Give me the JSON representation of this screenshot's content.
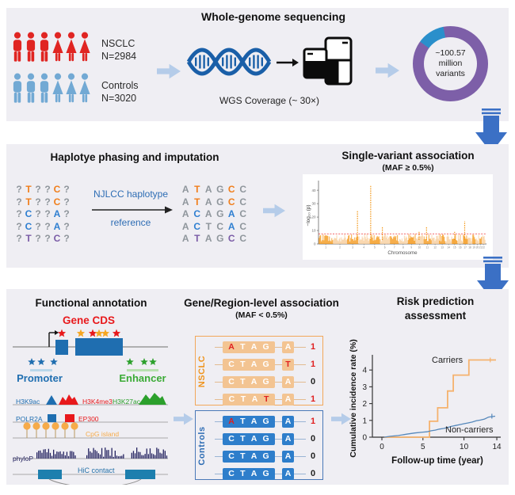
{
  "wgs": {
    "title": "Whole-genome sequencing",
    "cases_name": "NSCLC",
    "cases_n": "N=2984",
    "controls_name": "Controls",
    "controls_n": "N=3020",
    "coverage": "WGS Coverage (~ 30×)",
    "donut_line1": "~100.57 million",
    "donut_line2": "variants"
  },
  "haplotype": {
    "title": "Haplotye phasing and imputation",
    "ref_line1": "NJLCC haplotype",
    "ref_line2": "reference",
    "left_matrix": [
      [
        "?:g",
        "T:o",
        "?:g",
        "?:g",
        "C:o",
        "?:g"
      ],
      [
        "?:g",
        "T:o",
        "?:g",
        "?:g",
        "C:o",
        "?:g"
      ],
      [
        "?:g",
        "C:b",
        "?:g",
        "?:g",
        "A:b",
        "?:g"
      ],
      [
        "?:g",
        "C:b",
        "?:g",
        "?:g",
        "A:b",
        "?:g"
      ],
      [
        "?:g",
        "T:p",
        "?:g",
        "?:g",
        "C:p",
        "?:g"
      ]
    ],
    "right_matrix": [
      [
        "A:g",
        "T:o",
        "A:g",
        "G:g",
        "C:o",
        "C:g"
      ],
      [
        "A:g",
        "T:o",
        "A:g",
        "G:g",
        "C:o",
        "C:g"
      ],
      [
        "A:g",
        "C:b",
        "A:g",
        "G:g",
        "A:b",
        "C:g"
      ],
      [
        "A:g",
        "C:b",
        "T:g",
        "C:g",
        "A:b",
        "C:g"
      ],
      [
        "A:g",
        "T:p",
        "A:g",
        "G:g",
        "C:p",
        "C:g"
      ]
    ]
  },
  "single_variant": {
    "title": "Single-variant association",
    "subtitle": "(MAF ≥ 0.5%)"
  },
  "functional": {
    "title": "Functional annotation",
    "gene_cds": "Gene CDS",
    "promoter": "Promoter",
    "enhancer": "Enhancer",
    "tracks": {
      "h3k9ac": "H3K9ac",
      "h3k4me3": "H3K4me3",
      "h3k27ac": "H3K27ac",
      "polr2a": "POLR2A",
      "ep300": "EP300",
      "cpg": "CpG island",
      "phylop": "phyloP",
      "hic": "HiC contact"
    }
  },
  "gene_region": {
    "title": "Gene/Region-level association",
    "subtitle": "(MAF < 0.5%)",
    "nsclc_label": "NSCLC",
    "controls_label": "Controls",
    "nsclc_rows": [
      {
        "seq": [
          "A:r",
          "T:w",
          "A:w",
          "G:w"
        ],
        "allele": "A:w",
        "result": "1:r"
      },
      {
        "seq": [
          "C:w",
          "T:w",
          "A:w",
          "G:w"
        ],
        "allele": "T:r",
        "result": "1:r"
      },
      {
        "seq": [
          "C:w",
          "T:w",
          "A:w",
          "G:w"
        ],
        "allele": "A:w",
        "result": "0:k"
      },
      {
        "seq": [
          "C:w",
          "T:w",
          "A:w",
          "T:r"
        ],
        "allele": "A:w",
        "result": "1:r"
      }
    ],
    "controls_rows": [
      {
        "seq": [
          "A:r",
          "T:w",
          "A:w",
          "G:w"
        ],
        "allele": "A:w",
        "result": "1:r"
      },
      {
        "seq": [
          "C:w",
          "T:w",
          "A:w",
          "G:w"
        ],
        "allele": "A:w",
        "result": "0:k"
      },
      {
        "seq": [
          "C:w",
          "T:w",
          "A:w",
          "G:w"
        ],
        "allele": "A:w",
        "result": "0:k"
      },
      {
        "seq": [
          "C:w",
          "T:w",
          "A:w",
          "G:w"
        ],
        "allele": "A:w",
        "result": "0:k"
      }
    ]
  },
  "risk": {
    "title1": "Risk prediction",
    "title2": "assessment"
  },
  "colors": {
    "panel_bg": "#efeef3",
    "case_red": "#e02522",
    "control_blue": "#72a9d4",
    "flow_arrow": "#b5cce9",
    "down_arrow": "#3b70c5",
    "dna_blue": "#1a5fa8",
    "donut_purple": "#7d5fa8",
    "donut_blue": "#2a8fcb",
    "letter_gray": "#8f969c",
    "letter_orange": "#f07e1b",
    "letter_blue": "#2f7fd1",
    "letter_purple": "#7a5ba6",
    "ref_text": "#2e6db4",
    "fa_blue": "#1f6eb0",
    "fa_red": "#e8191c",
    "fa_green": "#2ca02c",
    "fa_orange": "#f6ab4a",
    "fa_navy": "#23225f",
    "fa_teal": "#1d7fae",
    "nsclc_orange": "#ef941e",
    "nsclc_fill": "#f3c492",
    "nsclc_border": "#f2a75a",
    "ctrl_blue": "#2e7ecb",
    "ctrl_border": "#4a78b8",
    "red": "#e01f1f",
    "black": "#222222"
  },
  "chart_data": [
    {
      "id": "variants_donut",
      "type": "pie",
      "title": "~100.57 million variants",
      "slices": [
        {
          "label": "highlighted",
          "value": 12,
          "color": "#2a8fcb"
        },
        {
          "label": "all other variants",
          "value": 88,
          "color": "#7d5fa8"
        }
      ],
      "blue_start_deg": 306,
      "blue_end_deg": 349
    },
    {
      "id": "manhattan",
      "type": "scatter",
      "title": "Single-variant association (MAF ≥ 0.5%)",
      "xlabel": "Chromosome",
      "ylabel": "−log₁₀ (p)",
      "ylim": [
        0,
        46
      ],
      "yticks": [
        0,
        10,
        20,
        30,
        40
      ],
      "xticks": [
        1,
        2,
        3,
        4,
        5,
        6,
        7,
        8,
        9,
        10,
        11,
        12,
        13,
        14,
        15,
        16,
        17,
        18,
        19,
        20,
        21,
        22
      ],
      "sig_line": 7.5,
      "baseline_band_max": 7,
      "chrom_rel_widths": [
        249,
        243,
        198,
        191,
        181,
        171,
        159,
        146,
        141,
        136,
        135,
        133,
        114,
        107,
        102,
        90,
        83,
        80,
        59,
        63,
        47,
        51
      ],
      "peaks": [
        {
          "chr": 3,
          "pos": 0.92,
          "value": 25
        },
        {
          "chr": 5,
          "pos": 0.12,
          "value": 44
        },
        {
          "chr": 6,
          "pos": 0.25,
          "value": 13
        },
        {
          "chr": 10,
          "pos": 0.45,
          "value": 9
        },
        {
          "chr": 11,
          "pos": 0.4,
          "value": 13
        },
        {
          "chr": 15,
          "pos": 0.5,
          "value": 9
        },
        {
          "chr": 17,
          "pos": 0.4,
          "value": 17
        }
      ],
      "colors": {
        "dark": "#f49a1d",
        "light": "#f8d0a0",
        "sig": "#f03030"
      }
    },
    {
      "id": "risk_curves",
      "type": "line",
      "xlabel": "Follow-up time (year)",
      "ylabel": "Cumulative incidence rate (%)",
      "xticks": [
        0,
        5,
        10,
        14
      ],
      "yticks": [
        0,
        1,
        2,
        3,
        4
      ],
      "xlim": [
        0,
        14.5
      ],
      "ylim": [
        0,
        5
      ],
      "series": [
        {
          "name": "Carriers",
          "color": "#f5b26e",
          "points": [
            [
              0.3,
              0
            ],
            [
              5.8,
              0
            ],
            [
              5.8,
              0.95
            ],
            [
              6.8,
              0.95
            ],
            [
              6.8,
              1.75
            ],
            [
              8.0,
              1.75
            ],
            [
              8.0,
              2.75
            ],
            [
              8.7,
              2.75
            ],
            [
              8.7,
              3.7
            ],
            [
              10.6,
              3.7
            ],
            [
              10.6,
              4.6
            ],
            [
              13.9,
              4.6
            ]
          ],
          "censor_x": 13.2
        },
        {
          "name": "Non-carriers",
          "color": "#5588bb",
          "points": [
            [
              0.3,
              0
            ],
            [
              1,
              0.05
            ],
            [
              2,
              0.1
            ],
            [
              3,
              0.18
            ],
            [
              4,
              0.25
            ],
            [
              5,
              0.3
            ],
            [
              5.5,
              0.32
            ],
            [
              6,
              0.38
            ],
            [
              6.5,
              0.42
            ],
            [
              7,
              0.48
            ],
            [
              7.5,
              0.52
            ],
            [
              8,
              0.58
            ],
            [
              8.5,
              0.65
            ],
            [
              9,
              0.7
            ],
            [
              9.5,
              0.75
            ],
            [
              10,
              0.8
            ],
            [
              10.5,
              0.85
            ],
            [
              11,
              0.9
            ],
            [
              11.5,
              0.98
            ],
            [
              12,
              1.02
            ],
            [
              12.5,
              1.08
            ],
            [
              13,
              1.2
            ],
            [
              13.8,
              1.25
            ]
          ],
          "censor_x": 13.4
        }
      ]
    }
  ]
}
